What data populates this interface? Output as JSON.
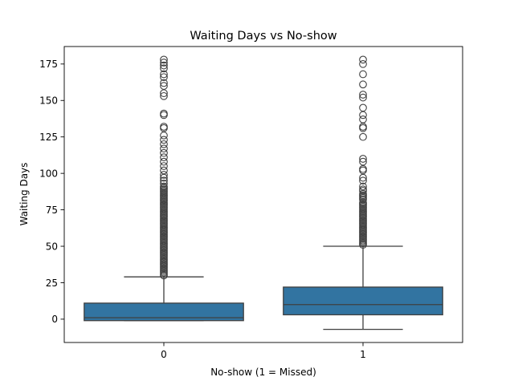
{
  "chart_data": {
    "type": "box",
    "title": "Waiting Days vs No-show",
    "xlabel": "No-show (1 = Missed)",
    "ylabel": "Waiting Days",
    "categories": [
      "0",
      "1"
    ],
    "ylim": [
      -16,
      187
    ],
    "yticks": [
      0,
      25,
      50,
      75,
      100,
      125,
      150,
      175
    ],
    "box_color": "#3274a1",
    "edge_color": "#3f3f3f",
    "boxes": [
      {
        "category": "0",
        "whisker_low": -1,
        "q1": -1,
        "median": 1,
        "q3": 11,
        "whisker_high": 29,
        "outliers": [
          178,
          176,
          174,
          172,
          168,
          166,
          162,
          160,
          155,
          153,
          141,
          140,
          132,
          131,
          126,
          123,
          120,
          117,
          114,
          111,
          108,
          105,
          102,
          99,
          97,
          95,
          93,
          91,
          90,
          89,
          88,
          87,
          86,
          85,
          84,
          83,
          82,
          81,
          80,
          79,
          78,
          77,
          76,
          75,
          74,
          73,
          72,
          71,
          70,
          69,
          68,
          67,
          66,
          65,
          64,
          63,
          62,
          61,
          60,
          59,
          58,
          57,
          56,
          55,
          54,
          53,
          52,
          51,
          50,
          49,
          48,
          47,
          46,
          45,
          44,
          43,
          42,
          41,
          40,
          39,
          38,
          37,
          36,
          35,
          34,
          33,
          32,
          31,
          30
        ]
      },
      {
        "category": "1",
        "whisker_low": -7,
        "q1": 3,
        "median": 10,
        "q3": 22,
        "whisker_high": 50,
        "outliers": [
          178,
          175,
          168,
          161,
          154,
          152,
          145,
          140,
          137,
          132,
          131,
          125,
          110,
          108,
          103,
          102,
          97,
          95,
          91,
          89,
          88,
          86,
          85,
          84,
          83,
          82,
          80,
          79,
          78,
          77,
          76,
          75,
          74,
          73,
          72,
          71,
          70,
          69,
          68,
          67,
          66,
          65,
          64,
          63,
          62,
          61,
          60,
          59,
          58,
          57,
          56,
          55,
          54,
          53,
          52,
          51
        ]
      }
    ],
    "grid": false,
    "legend": "none"
  }
}
